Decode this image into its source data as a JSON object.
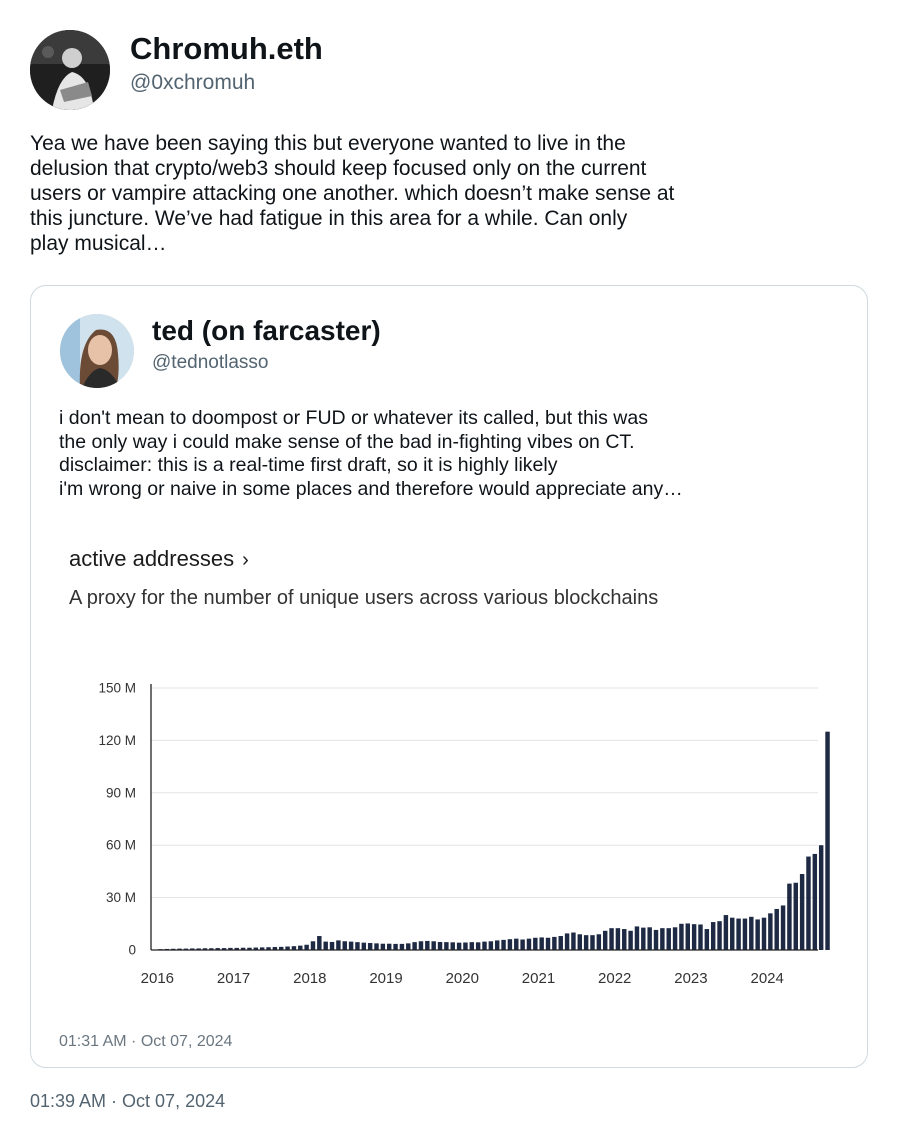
{
  "tweet": {
    "author": {
      "display_name": "Chromuh.eth",
      "handle": "@0xchromuh"
    },
    "text_lines": [
      "Yea we have been saying this but everyone wanted to live in the",
      "delusion that crypto/web3 should keep focused only on the current",
      "users or vampire attacking one another. which doesn’t make sense at",
      "this juncture. We’ve had fatigue in this area for a while. Can only",
      "play musical…"
    ],
    "timestamp": "01:39 AM · Oct 07, 2024"
  },
  "quoted": {
    "author": {
      "display_name": "ted (on farcaster)",
      "handle": "@tednotlasso"
    },
    "text_lines": [
      "i don't mean to doompost or FUD or whatever its called, but this was",
      "the only way i could make sense of the bad in-fighting vibes on CT.",
      "disclaimer: this is a real-time first draft, so it is highly likely",
      "i'm wrong or naive in some places and therefore would appreciate any…"
    ],
    "timestamp": "01:31 AM · Oct 07, 2024"
  },
  "chart_data": {
    "type": "bar",
    "title": "active addresses",
    "title_chevron": "›",
    "subtitle": "A proxy for the number of unique users across various blockchains",
    "xlabel": "",
    "ylabel": "",
    "x_ticks": [
      "2016",
      "2017",
      "2018",
      "2019",
      "2020",
      "2021",
      "2022",
      "2023",
      "2024"
    ],
    "y_ticks": [
      "0",
      "30 M",
      "60 M",
      "90 M",
      "120 M",
      "150 M"
    ],
    "y_tick_values": [
      0,
      30,
      60,
      90,
      120,
      150
    ],
    "ylim": [
      0,
      150
    ],
    "unit": "M",
    "x_range": [
      "2015-12",
      "2024-09"
    ],
    "grid": true,
    "color": "#1e2a44",
    "series": [
      {
        "start": "2016-01",
        "frequency": "monthly",
        "values": [
          0.5,
          0.6,
          0.7,
          0.8,
          0.8,
          0.9,
          0.9,
          1.0,
          1.0,
          1.1,
          1.1,
          1.2,
          1.2,
          1.3,
          1.3,
          1.4,
          1.5,
          1.6,
          1.7,
          1.8,
          2.0,
          2.2,
          2.5,
          3.0,
          5.0,
          8.0,
          4.8,
          4.6,
          5.5,
          5.0,
          4.8,
          4.5,
          4.2,
          4.0,
          3.8,
          3.6,
          3.6,
          3.5,
          3.5,
          3.8,
          4.5,
          5.0,
          5.2,
          5.0,
          4.6,
          4.5,
          4.4,
          4.2,
          4.3,
          4.5,
          4.4,
          4.8,
          5.0,
          5.5,
          5.8,
          6.2,
          6.5,
          6.0,
          6.5,
          7.0,
          7.2,
          7.0,
          7.5,
          8.0,
          9.5,
          10.0,
          9.0,
          8.5,
          8.5,
          9.0,
          11.0,
          12.5,
          12.5,
          12.0,
          11.0,
          13.5,
          12.8,
          13.0,
          11.5,
          12.5,
          12.5,
          13.0,
          15.0,
          15.2,
          14.8,
          14.6,
          12.0,
          16.0,
          16.5,
          20.0,
          18.5,
          18.0,
          18.0,
          19.0,
          17.5,
          18.5,
          21.0,
          23.5,
          25.5,
          38.0,
          38.5,
          43.5,
          53.5,
          55.0,
          60.0,
          125.0
        ]
      }
    ]
  }
}
